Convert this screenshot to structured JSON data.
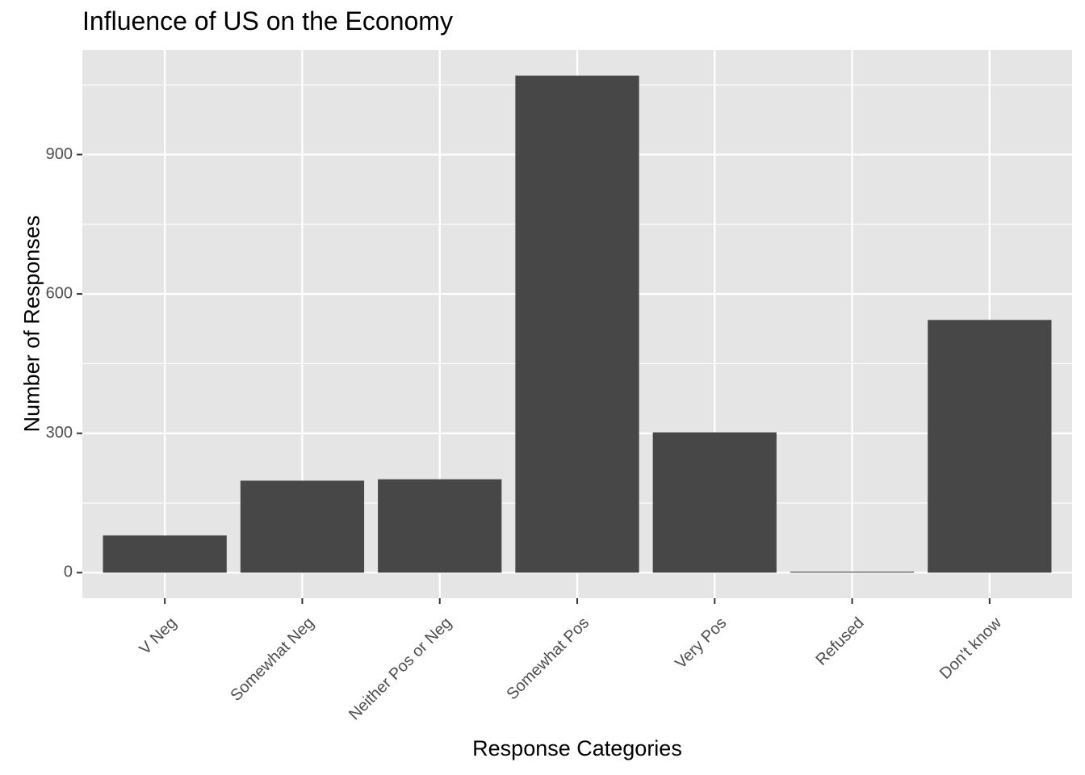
{
  "chart_data": {
    "type": "bar",
    "title": "Influence of US on the Economy",
    "xlabel": "Response Categories",
    "ylabel": "Number of Responses",
    "categories": [
      "V Neg",
      "Somewhat Neg",
      "Neither Pos or Neg",
      "Somewhat Pos",
      "Very Pos",
      "Refused",
      "Don't know"
    ],
    "values": [
      80,
      198,
      201,
      1070,
      302,
      2,
      544
    ],
    "ylim": [
      -55,
      1125
    ],
    "yticks": [
      0,
      300,
      600,
      900
    ],
    "grid": true,
    "legend": "none",
    "colors": {
      "panel_background": "#e5e5e5",
      "grid": "#ffffff",
      "bar_fill": "#474747",
      "axis_text": "#4d4d4d"
    }
  }
}
